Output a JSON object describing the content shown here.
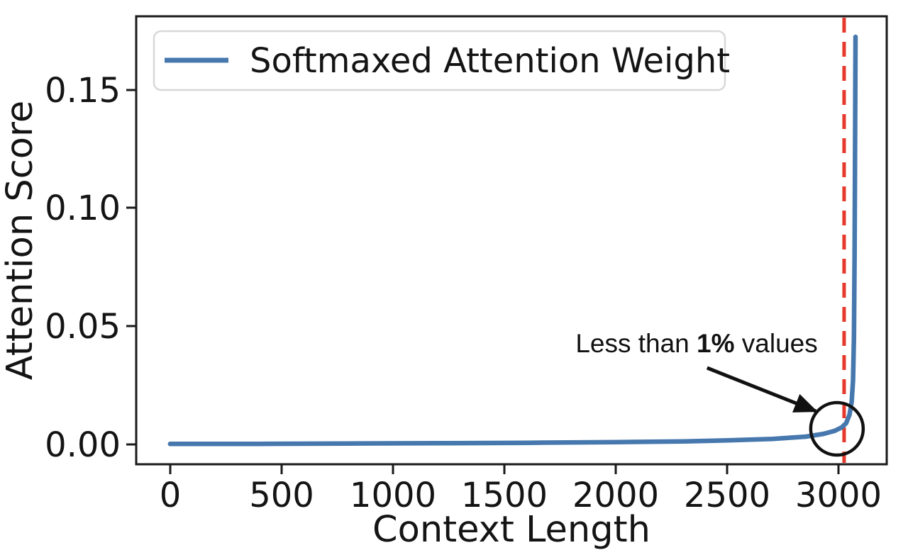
{
  "chart_data": {
    "type": "line",
    "title": "",
    "xlabel": "Context Length",
    "ylabel": "Attention Score",
    "xlim": [
      -152,
      3212
    ],
    "ylim": [
      -0.0084,
      0.1812
    ],
    "grid": false,
    "x_ticks": [
      0,
      500,
      1000,
      1500,
      2000,
      2500,
      3000
    ],
    "x_tick_labels": [
      "0",
      "500",
      "1000",
      "1500",
      "2000",
      "2500",
      "3000"
    ],
    "y_ticks": [
      0.0,
      0.05,
      0.1,
      0.15
    ],
    "y_tick_labels": [
      "0.00",
      "0.05",
      "0.10",
      "0.15"
    ],
    "legend": {
      "position": "upper left",
      "entries": [
        {
          "label": "Softmaxed Attention Weight",
          "color": "#4678ae"
        }
      ]
    },
    "series": [
      {
        "name": "Softmaxed Attention Weight",
        "color": "#4678ae",
        "points": [
          [
            0,
            0.0002
          ],
          [
            400,
            0.00025
          ],
          [
            800,
            0.0004
          ],
          [
            1200,
            0.0005
          ],
          [
            1600,
            0.0007
          ],
          [
            2000,
            0.001
          ],
          [
            2300,
            0.0013
          ],
          [
            2500,
            0.0017
          ],
          [
            2700,
            0.0023
          ],
          [
            2850,
            0.0033
          ],
          [
            2930,
            0.0045
          ],
          [
            2980,
            0.0058
          ],
          [
            3010,
            0.0072
          ],
          [
            3030,
            0.009
          ],
          [
            3045,
            0.0125
          ],
          [
            3055,
            0.018
          ],
          [
            3061,
            0.027
          ],
          [
            3065,
            0.045
          ],
          [
            3068,
            0.08
          ],
          [
            3070,
            0.12
          ],
          [
            3071,
            0.15
          ],
          [
            3072,
            0.1725
          ]
        ]
      }
    ],
    "vline": {
      "x": 3021,
      "color": "#e6392d",
      "style": "dashed"
    },
    "annotation": {
      "text_full": "Less than 1% values",
      "text_prefix": "Less than ",
      "text_bold": "1%",
      "text_suffix": " values",
      "text_pos": [
        2360,
        0.0429
      ],
      "arrow_tail": [
        2407,
        0.0324
      ],
      "arrow_tip": [
        2894,
        0.0141
      ],
      "circle_center": [
        2989,
        0.0066
      ],
      "circle_radius_px": 37
    },
    "colors": {
      "line_blue": "#4678ae",
      "dash_red": "#e6392d",
      "annotation_black": "#111111",
      "axis_black": "#1a1a1a",
      "legend_border": "#d8d8d8"
    }
  }
}
